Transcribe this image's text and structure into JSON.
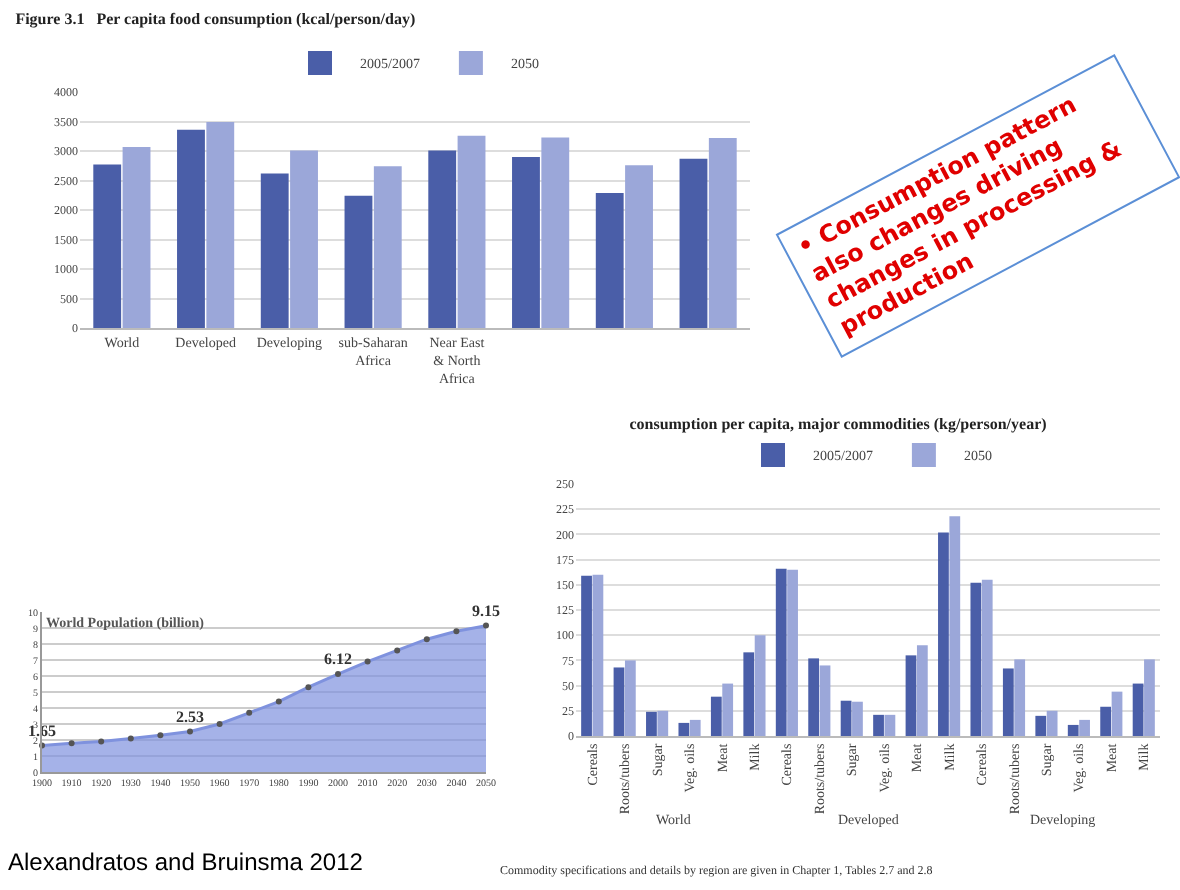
{
  "chart_data": [
    {
      "type": "bar",
      "title": "Figure 3.1   Per capita food consumption (kcal/person/day)",
      "categories": [
        "World",
        "Developed",
        "Developing",
        "sub-Saharan Africa",
        "Near East & North Africa",
        null,
        null,
        null
      ],
      "series": [
        {
          "name": "2005/2007",
          "color": "#4a5ea8",
          "values": [
            2770,
            3360,
            2620,
            2240,
            3010,
            2900,
            2290,
            2870
          ]
        },
        {
          "name": "2050",
          "color": "#9ba7d9",
          "values": [
            3070,
            3490,
            3010,
            2740,
            3260,
            3230,
            2760,
            3220
          ]
        }
      ],
      "ylim": [
        0,
        4000
      ],
      "yticks": [
        0,
        500,
        1000,
        1500,
        2000,
        2500,
        3000,
        3500,
        4000
      ],
      "grid": "y",
      "legend": "top"
    },
    {
      "type": "bar",
      "title": "consumption per capita, major commodities (kg/person/year)",
      "categories": [
        "Cereals",
        "Roots/tubers",
        "Sugar",
        "Veg. oils",
        "Meat",
        "Milk",
        "Cereals",
        "Roots/tubers",
        "Sugar",
        "Veg. oils",
        "Meat",
        "Milk",
        "Cereals",
        "Roots/tubers",
        "Sugar",
        "Veg. oils",
        "Meat",
        "Milk"
      ],
      "series": [
        {
          "name": "2005/2007",
          "color": "#4a5ea8",
          "values": [
            159,
            68,
            24,
            13,
            39,
            83,
            166,
            77,
            35,
            21,
            80,
            202,
            152,
            67,
            20,
            11,
            29,
            52
          ]
        },
        {
          "name": "2050",
          "color": "#9ba7d9",
          "values": [
            160,
            75,
            25,
            16,
            52,
            100,
            165,
            70,
            34,
            21,
            90,
            218,
            155,
            76,
            25,
            16,
            44,
            76
          ]
        }
      ],
      "ylim": [
        0,
        250
      ],
      "yticks": [
        0,
        25,
        50,
        75,
        100,
        125,
        150,
        175,
        200,
        225,
        250
      ],
      "grid": "y",
      "legend": "top",
      "annotations": [
        "World",
        "Developed",
        "Developing"
      ]
    },
    {
      "type": "area",
      "title": "World Population (billion)",
      "x": [
        1900,
        1910,
        1920,
        1930,
        1940,
        1950,
        1960,
        1970,
        1980,
        1990,
        2000,
        2010,
        2020,
        2030,
        2040,
        2050
      ],
      "series": [
        {
          "color": "#7f92de",
          "values": [
            1.65,
            1.8,
            1.9,
            2.1,
            2.3,
            2.53,
            3.0,
            3.7,
            4.4,
            5.3,
            6.12,
            6.9,
            7.6,
            8.3,
            8.8,
            9.15
          ],
          "value_labels": [
            "1.65",
            null,
            null,
            null,
            null,
            "2.53",
            null,
            null,
            null,
            null,
            "6.12",
            null,
            null,
            null,
            null,
            "9.15"
          ]
        }
      ],
      "xlim": [
        1900,
        2050
      ],
      "xticks": [
        1900,
        1910,
        1920,
        1930,
        1940,
        1950,
        1960,
        1970,
        1980,
        1990,
        2000,
        2010,
        2020,
        2030,
        2040,
        2050
      ],
      "ylim": [
        0,
        10
      ],
      "yticks": [
        0,
        1,
        2,
        3,
        4,
        5,
        6,
        7,
        8,
        9,
        10
      ],
      "grid": "y",
      "marker": "circle"
    },
    {
      "type": "other",
      "annotations": [
        "• Consumption pattern also changes driving changes in processing & production",
        "Commodity specifications and details by region are given in Chapter 1, Tables 2.7 and 2.8",
        "Alexandratos and Bruinsma  2012"
      ]
    }
  ]
}
